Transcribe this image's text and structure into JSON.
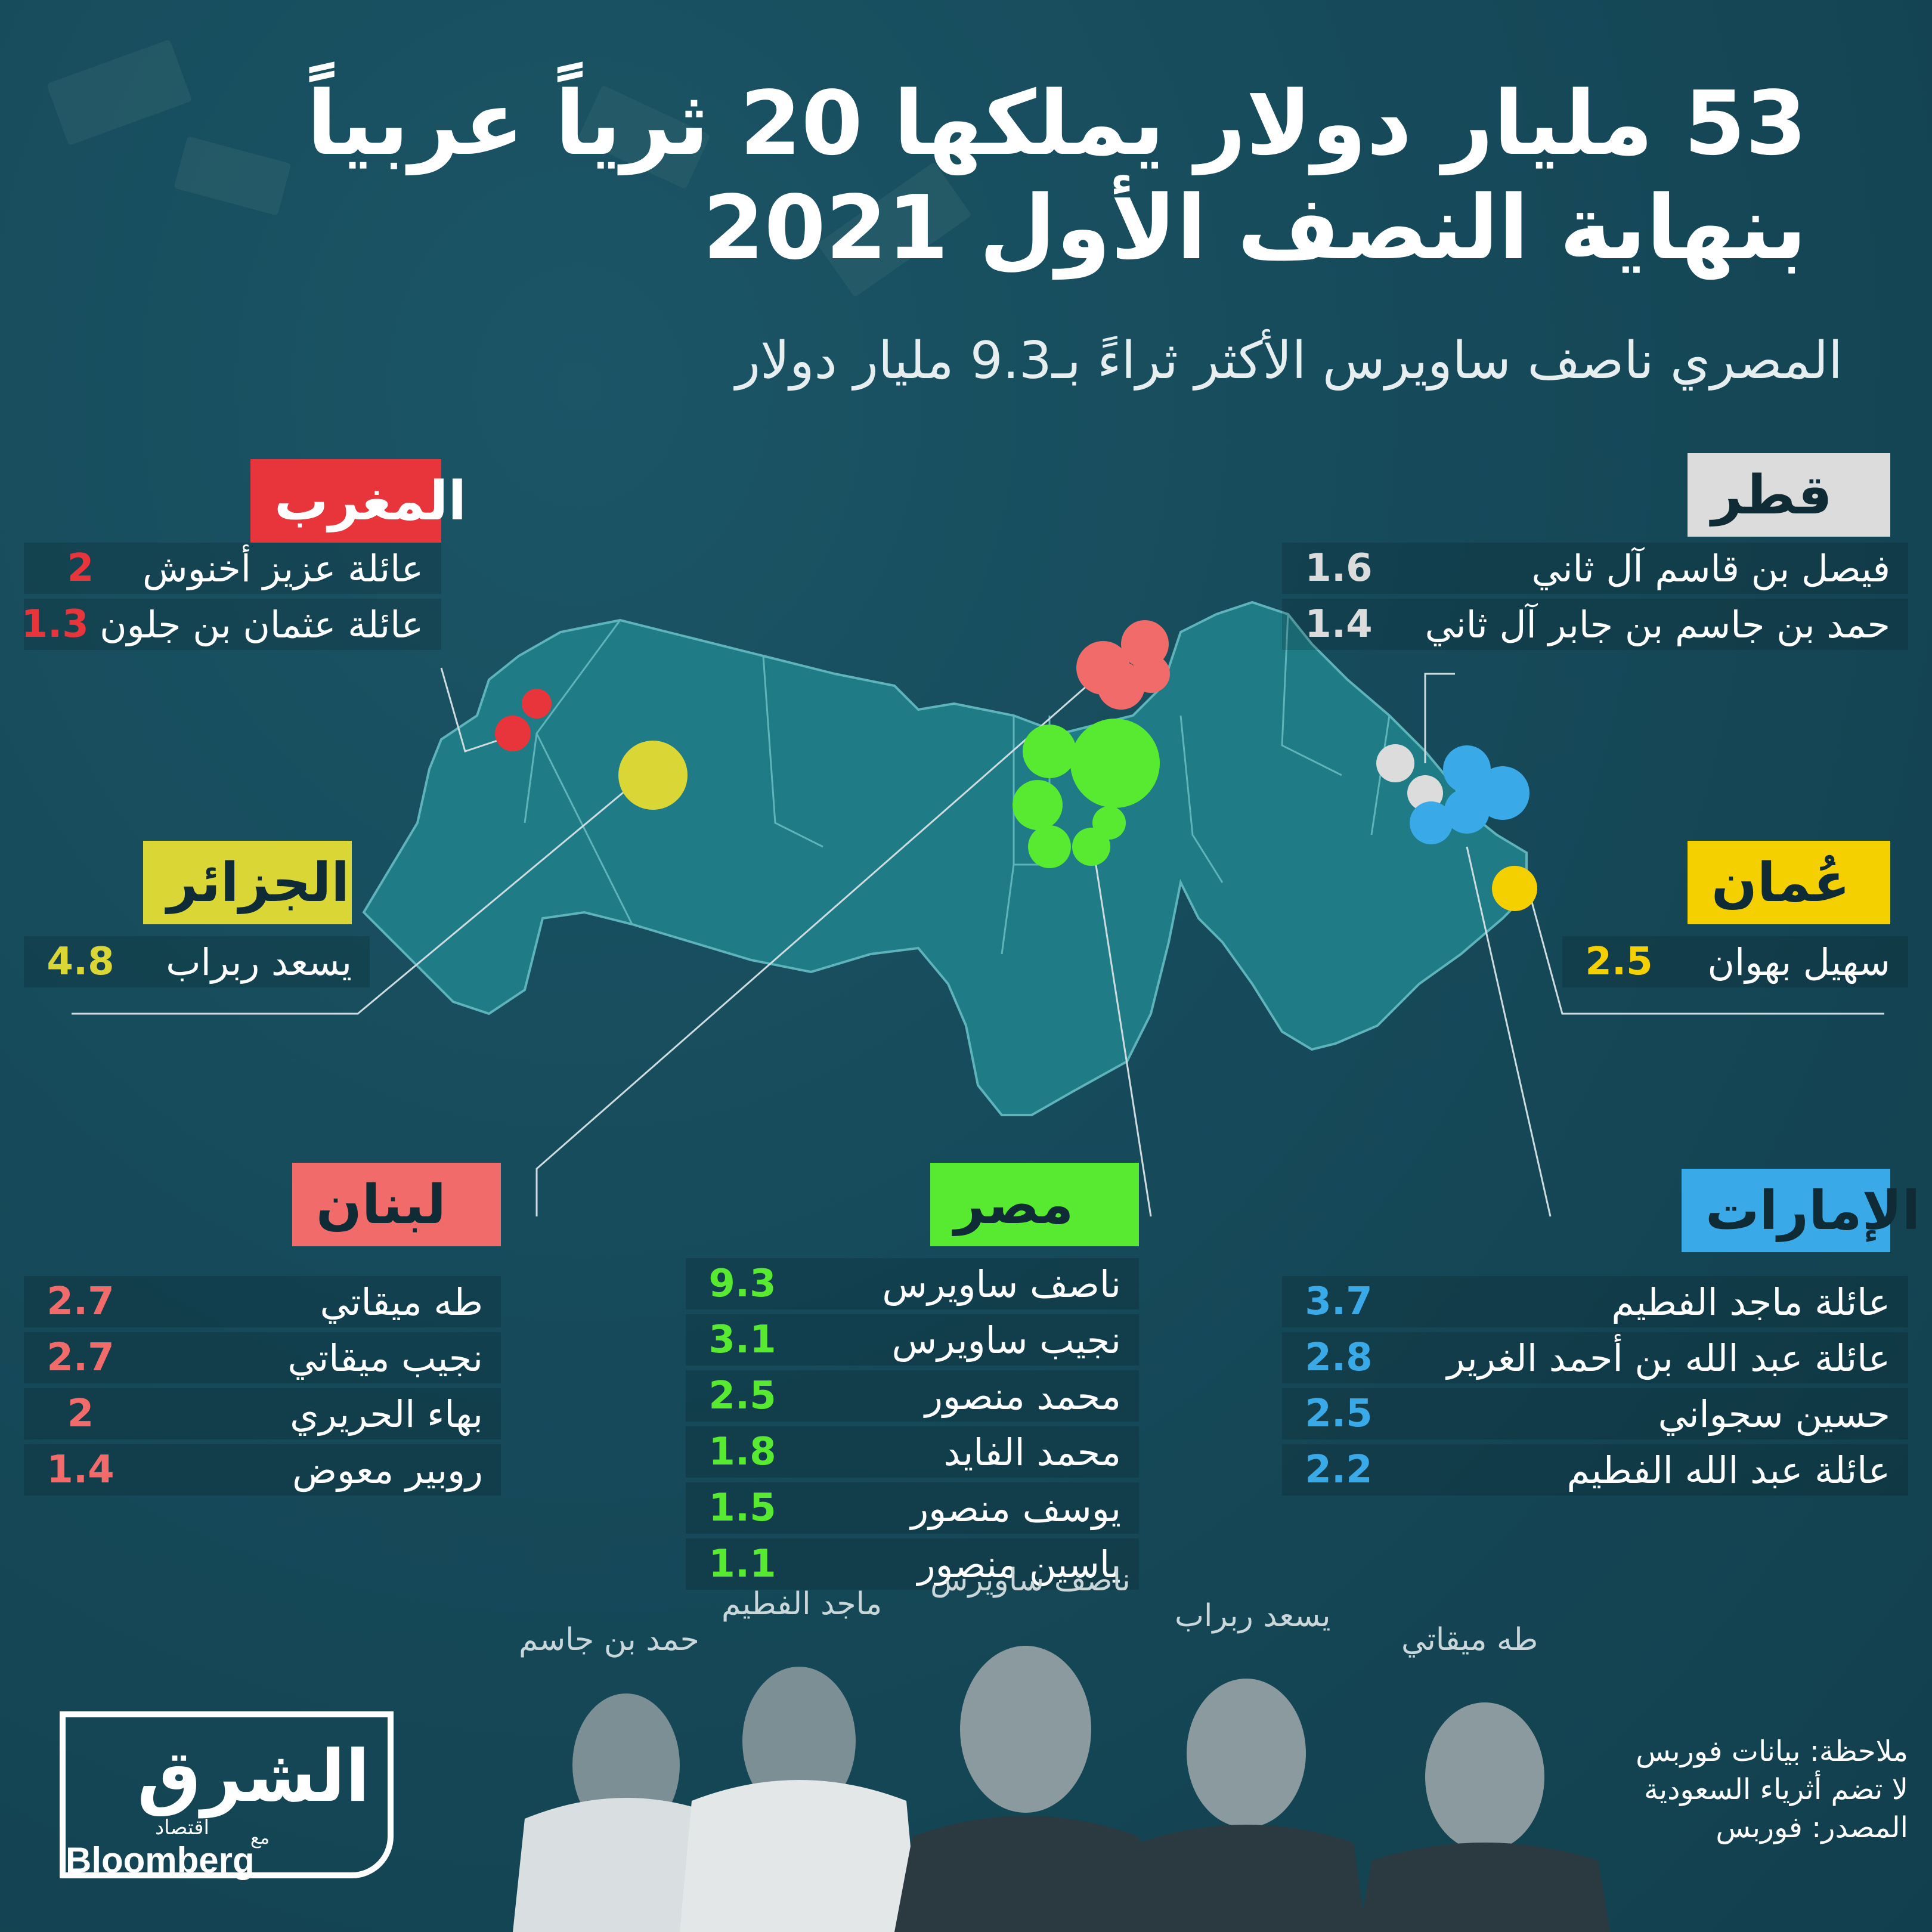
{
  "title": "53 مليار دولار يملكها 20 ثرياً عربياً بنهاية النصف الأول 2021",
  "subtitle": "المصري ناصف ساويرس الأكثر ثراءً بـ9.3 مليار دولار",
  "colors": {
    "background": "#164a5a",
    "map_fill": "#1f7b85",
    "morocco": "#e8353b",
    "algeria": "#d9d635",
    "lebanon": "#f26b6b",
    "egypt": "#57ea30",
    "uae": "#3aa9e8",
    "qatar": "#dcdcdc",
    "oman": "#f5d000"
  },
  "countries": [
    {
      "id": "morocco",
      "name": "المغرب",
      "color": "#e8353b",
      "box_text_color": "#ffffff",
      "people": [
        {
          "name": "عائلة عزيز أخنوش",
          "value": "2"
        },
        {
          "name": "عائلة عثمان بن جلون",
          "value": "1.3"
        }
      ]
    },
    {
      "id": "qatar",
      "name": "قطر",
      "color": "#dcdcdc",
      "box_text_color": "#0f2b35",
      "people": [
        {
          "name": "فيصل بن قاسم آل ثاني",
          "value": "1.6"
        },
        {
          "name": "حمد بن جاسم بن جابر آل ثاني",
          "value": "1.4"
        }
      ]
    },
    {
      "id": "algeria",
      "name": "الجزائر",
      "color": "#d9d635",
      "box_text_color": "#0f2b35",
      "people": [
        {
          "name": "يسعد ربراب",
          "value": "4.8"
        }
      ]
    },
    {
      "id": "oman",
      "name": "عُمان",
      "color": "#f5d000",
      "box_text_color": "#0f2b35",
      "people": [
        {
          "name": "سهيل بهوان",
          "value": "2.5"
        }
      ]
    },
    {
      "id": "lebanon",
      "name": "لبنان",
      "color": "#f26b6b",
      "box_text_color": "#0f2b35",
      "people": [
        {
          "name": "طه ميقاتي",
          "value": "2.7"
        },
        {
          "name": "نجيب ميقاتي",
          "value": "2.7"
        },
        {
          "name": "بهاء الحريري",
          "value": "2"
        },
        {
          "name": "روبير معوض",
          "value": "1.4"
        }
      ]
    },
    {
      "id": "egypt",
      "name": "مصر",
      "color": "#57ea30",
      "box_text_color": "#0f2b35",
      "people": [
        {
          "name": "ناصف ساويرس",
          "value": "9.3"
        },
        {
          "name": "نجيب ساويرس",
          "value": "3.1"
        },
        {
          "name": "محمد منصور",
          "value": "2.5"
        },
        {
          "name": "محمد الفايد",
          "value": "1.8"
        },
        {
          "name": "يوسف منصور",
          "value": "1.5"
        },
        {
          "name": "ياسين منصور",
          "value": "1.1"
        }
      ]
    },
    {
      "id": "uae",
      "name": "الإمارات",
      "color": "#3aa9e8",
      "box_text_color": "#0f2b35",
      "people": [
        {
          "name": "عائلة ماجد الفطيم",
          "value": "3.7"
        },
        {
          "name": "عائلة عبد الله بن أحمد الغرير",
          "value": "2.8"
        },
        {
          "name": "حسين سجواني",
          "value": "2.5"
        },
        {
          "name": "عائلة عبد الله الفطيم",
          "value": "2.2"
        }
      ]
    }
  ],
  "portraits": [
    {
      "label": "حمد بن جاسم",
      "icon": "man-portrait-icon"
    },
    {
      "label": "ماجد الفطيم",
      "icon": "man-portrait-icon"
    },
    {
      "label": "ناصف ساويرس",
      "icon": "man-portrait-icon"
    },
    {
      "label": "يسعد ربراب",
      "icon": "man-portrait-icon"
    },
    {
      "label": "طه ميقاتي",
      "icon": "man-portrait-icon"
    }
  ],
  "note": {
    "line1": "ملاحظة: بيانات فوربس",
    "line2": "لا تضم أثرياء السعودية",
    "line3": "المصدر: فوربس"
  },
  "logo": {
    "arabic": "الشرق",
    "sub": "اقتصاد",
    "with": "مع",
    "english": "Bloomberg"
  }
}
